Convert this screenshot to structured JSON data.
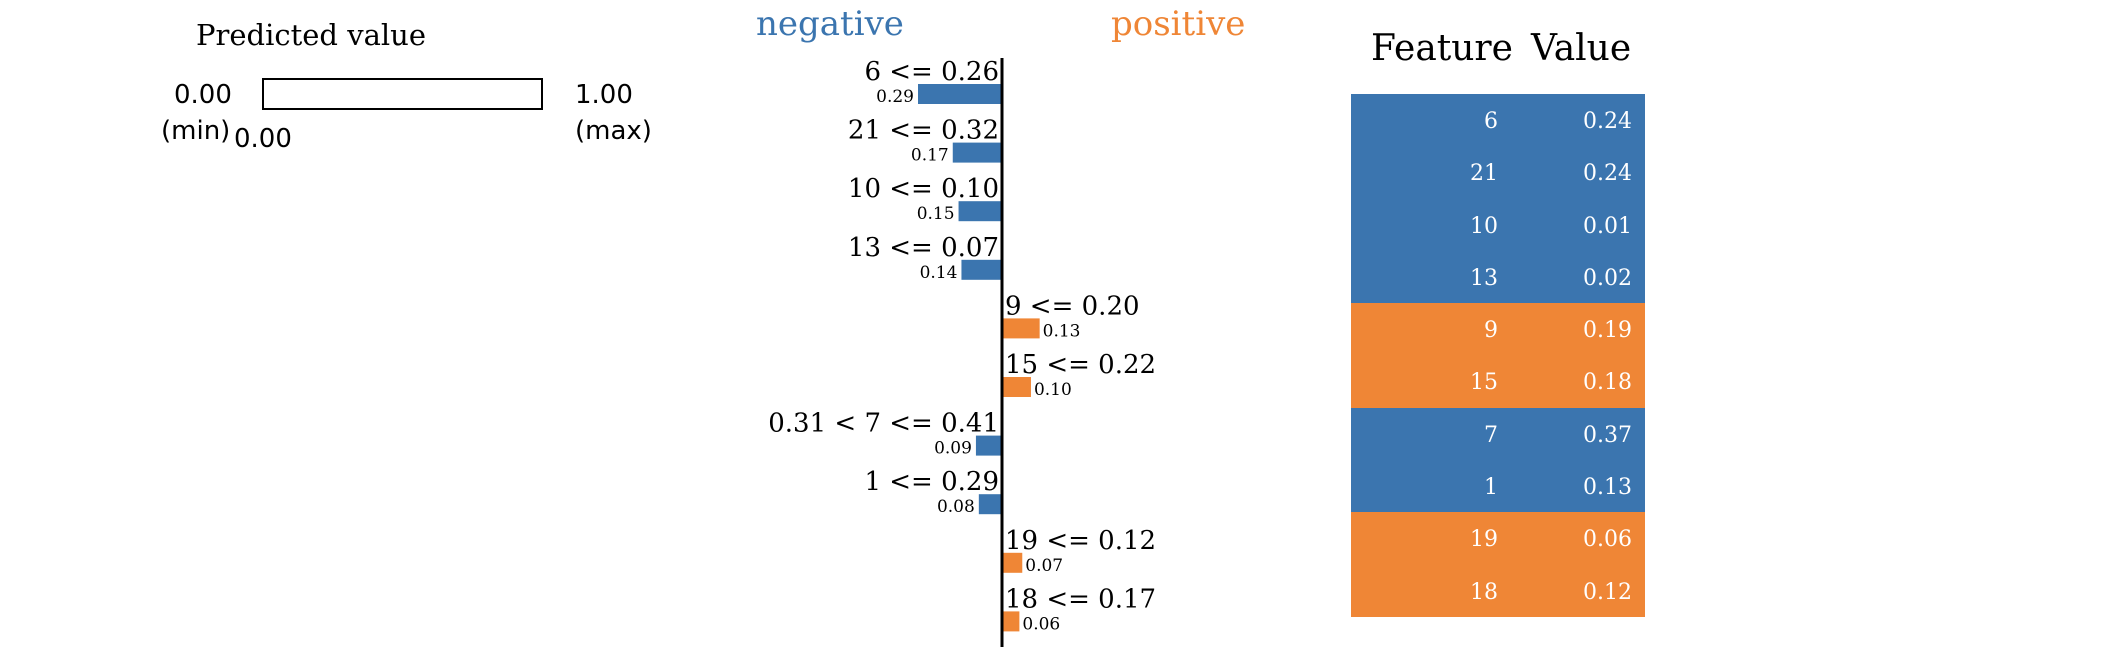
{
  "prediction": {
    "title": "Predicted value",
    "min_value": "0.00",
    "min_label": "(min)",
    "max_value": "1.00",
    "max_label": "(max)",
    "value": "0.00",
    "fill_fraction": 0.0
  },
  "explanation": {
    "negative_label": "negative",
    "positive_label": "positive"
  },
  "chart_data": {
    "type": "bar",
    "orientation": "horizontal",
    "colors": {
      "negative": "#3b75af",
      "positive": "#ef8636"
    },
    "categories": [
      "6 <= 0.26",
      "21 <= 0.32",
      "10 <= 0.10",
      "13 <= 0.07",
      "9 <= 0.20",
      "15 <= 0.22",
      "0.31 < 7 <= 0.41",
      "1 <= 0.29",
      "19 <= 0.12",
      "18 <= 0.17"
    ],
    "weight_labels": [
      "0.29",
      "0.17",
      "0.15",
      "0.14",
      "0.13",
      "0.10",
      "0.09",
      "0.08",
      "0.07",
      "0.06"
    ],
    "values": [
      -0.29,
      -0.17,
      -0.15,
      -0.14,
      0.13,
      0.1,
      -0.09,
      -0.08,
      0.07,
      0.06
    ],
    "xlim": [
      -0.29,
      0.29
    ]
  },
  "table": {
    "headers": [
      "Feature",
      "Value"
    ],
    "rows": [
      {
        "feature": "6",
        "value": "0.24",
        "color": "#3b75af"
      },
      {
        "feature": "21",
        "value": "0.24",
        "color": "#3b75af"
      },
      {
        "feature": "10",
        "value": "0.01",
        "color": "#3b75af"
      },
      {
        "feature": "13",
        "value": "0.02",
        "color": "#3b75af"
      },
      {
        "feature": "9",
        "value": "0.19",
        "color": "#ef8636"
      },
      {
        "feature": "15",
        "value": "0.18",
        "color": "#ef8636"
      },
      {
        "feature": "7",
        "value": "0.37",
        "color": "#3b75af"
      },
      {
        "feature": "1",
        "value": "0.13",
        "color": "#3b75af"
      },
      {
        "feature": "19",
        "value": "0.06",
        "color": "#ef8636"
      },
      {
        "feature": "18",
        "value": "0.12",
        "color": "#ef8636"
      }
    ]
  }
}
